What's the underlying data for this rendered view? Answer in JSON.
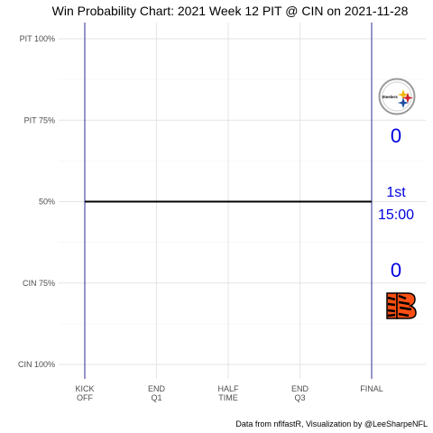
{
  "chart_data": {
    "type": "line",
    "title": "Win Probability Chart: 2021 Week 12 PIT @ CIN on 2021-11-28",
    "caption": "Data from nflfastR, Visualization by @LeeSharpeNFL",
    "x_ticks": [
      {
        "value": 0,
        "lines": [
          "KICK",
          "OFF"
        ]
      },
      {
        "value": 900,
        "lines": [
          "END",
          "Q1"
        ]
      },
      {
        "value": 1800,
        "lines": [
          "HALF",
          "TIME"
        ]
      },
      {
        "value": 2700,
        "lines": [
          "END",
          "Q3"
        ]
      },
      {
        "value": 3600,
        "lines": [
          "FINAL"
        ]
      }
    ],
    "y_ticks": [
      {
        "value": 0,
        "label": "PIT 100%"
      },
      {
        "value": 0.25,
        "label": "PIT 75%"
      },
      {
        "value": 0.5,
        "label": "50%"
      },
      {
        "value": 0.75,
        "label": "CIN 75%"
      },
      {
        "value": 1,
        "label": "CIN 100%"
      }
    ],
    "xlim": [
      0,
      3600
    ],
    "ylim": [
      0,
      1
    ],
    "series": [
      {
        "points": [
          [
            0,
            0.5
          ],
          [
            3600,
            0.5
          ]
        ],
        "color": "#000000"
      }
    ],
    "vlines": [
      0,
      3600
    ],
    "vline_color": "#000080",
    "away_team": {
      "abbr": "PIT",
      "score": "0",
      "logo": "steelers-logo-icon"
    },
    "home_team": {
      "abbr": "CIN",
      "score": "0",
      "logo": "bengals-logo-icon"
    },
    "game_status": {
      "quarter": "1st",
      "clock": "15:00"
    },
    "score_color": "#0000dd",
    "grid": true
  }
}
